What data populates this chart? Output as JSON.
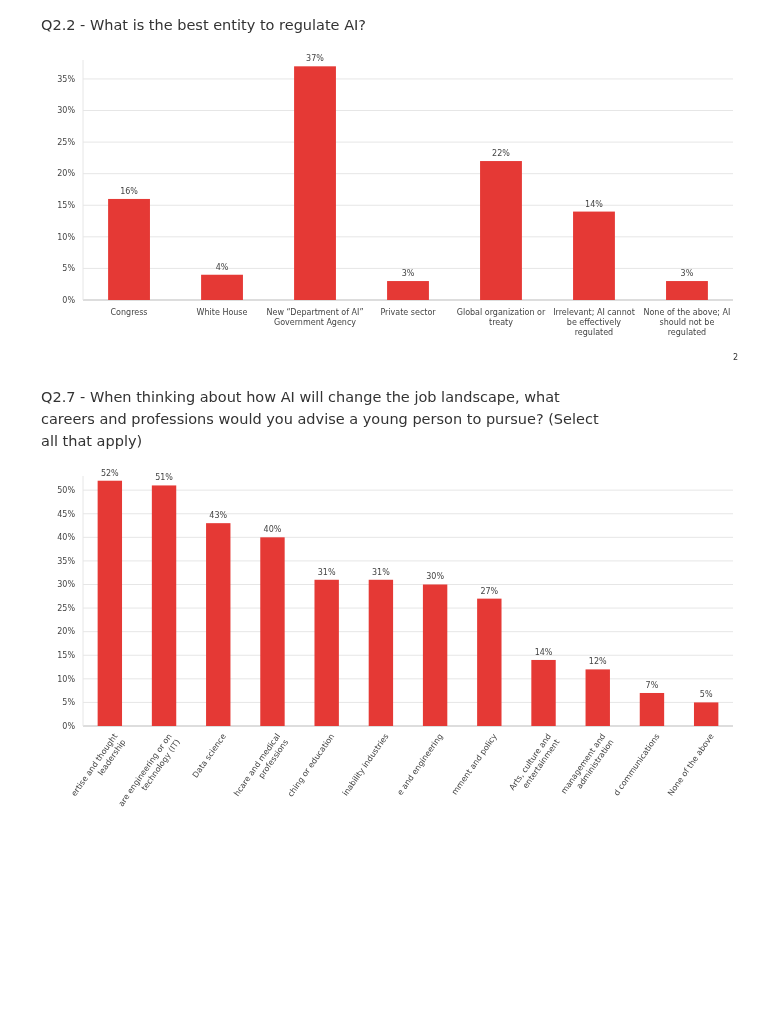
{
  "chart_data": [
    {
      "type": "bar",
      "title": "Q2.2 - What is the best entity to regulate AI?",
      "categories": [
        "Congress",
        "White House",
        "New “Department of AI” Government Agency",
        "Private sector",
        "Global organization or treaty",
        "Irrelevant; AI cannot be effectively regulated",
        "None of the above; AI should not be regulated"
      ],
      "values": [
        16,
        4,
        37,
        3,
        22,
        14,
        3
      ],
      "value_labels": [
        "16%",
        "4%",
        "37%",
        "3%",
        "22%",
        "14%",
        "3%"
      ],
      "color": "#e53935",
      "ylim": [
        0,
        38
      ],
      "yticks": [
        {
          "value": 0,
          "label": "0%"
        },
        {
          "value": 5,
          "label": "5%"
        },
        {
          "value": 10,
          "label": "10%"
        },
        {
          "value": 15,
          "label": "15%"
        },
        {
          "value": 20,
          "label": "20%"
        },
        {
          "value": 25,
          "label": "25%"
        },
        {
          "value": 30,
          "label": "30%"
        },
        {
          "value": 35,
          "label": "35%"
        }
      ],
      "grid": "y",
      "annotations": [
        "2"
      ]
    },
    {
      "type": "bar",
      "title": "Q2.7 - When thinking about how AI will change the job landscape, what careers and professions would you advise a young person to pursue? (Select all that apply)",
      "categories": [
        "ertise and thought leadership",
        "are engineering or on technology (IT)",
        "Data science",
        "hcare and medical professions",
        "ching or education",
        "inability industries",
        "e and engineering",
        "mment and policy",
        "Arts, culture and entertainment",
        "management and administration",
        "d communications",
        "None of the above"
      ],
      "values": [
        52,
        51,
        43,
        40,
        31,
        31,
        30,
        27,
        14,
        12,
        7,
        5
      ],
      "value_labels": [
        "52%",
        "51%",
        "43%",
        "40%",
        "31%",
        "31%",
        "30%",
        "27%",
        "14%",
        "12%",
        "7%",
        "5%"
      ],
      "color": "#e53935",
      "ylim": [
        0,
        53
      ],
      "yticks": [
        {
          "value": 0,
          "label": "0%"
        },
        {
          "value": 5,
          "label": "5%"
        },
        {
          "value": 10,
          "label": "10%"
        },
        {
          "value": 15,
          "label": "15%"
        },
        {
          "value": 20,
          "label": "20%"
        },
        {
          "value": 25,
          "label": "25%"
        },
        {
          "value": 30,
          "label": "30%"
        },
        {
          "value": 35,
          "label": "35%"
        },
        {
          "value": 40,
          "label": "40%"
        },
        {
          "value": 45,
          "label": "45%"
        },
        {
          "value": 50,
          "label": "50%"
        }
      ],
      "grid": "y"
    }
  ]
}
